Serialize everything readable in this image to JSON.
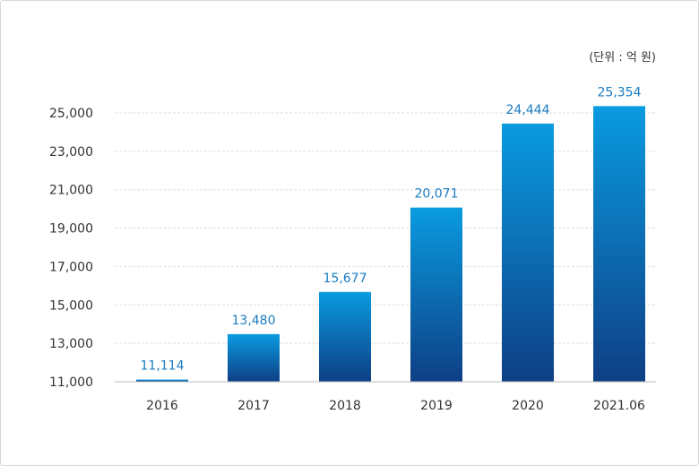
{
  "chart_data": {
    "type": "bar",
    "unit_label": "(단위 : 억 원)",
    "categories": [
      "2016",
      "2017",
      "2018",
      "2019",
      "2020",
      "2021.06"
    ],
    "values": [
      11114,
      13480,
      15677,
      20071,
      24444,
      25354
    ],
    "value_labels": [
      "11,114",
      "13,480",
      "15,677",
      "20,071",
      "24,444",
      "25,354"
    ],
    "ylim": [
      11000,
      25000
    ],
    "yticks": [
      11000,
      13000,
      15000,
      17000,
      19000,
      21000,
      23000,
      25000
    ],
    "ytick_labels": [
      "11,000",
      "13,000",
      "15,000",
      "17,000",
      "19,000",
      "21,000",
      "23,000",
      "25,000"
    ],
    "grid": true,
    "colors": {
      "bar_top": "#0a9be0",
      "bar_bottom": "#0e3f85",
      "label": "#1a7cc1",
      "grid": "#dddddd"
    }
  }
}
